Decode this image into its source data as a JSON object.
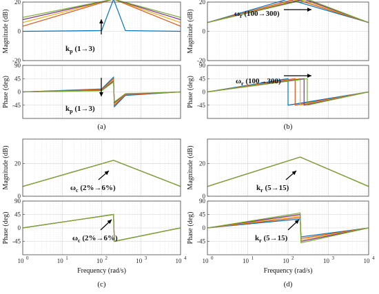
{
  "figure": {
    "xlabel": "Frequency (rad/s)",
    "x_ticks": [
      "10",
      "10",
      "10",
      "10",
      "10"
    ],
    "x_tick_exponents": [
      "0",
      "1",
      "2",
      "3",
      "4"
    ],
    "captions": [
      "(a)",
      "(b)",
      "(c)",
      "(d)"
    ],
    "series_colors": [
      "#0072BD",
      "#D95319",
      "#EDB120",
      "#7E2F8E",
      "#77AC30"
    ]
  },
  "chart_data": [
    {
      "type": "line",
      "panel": "a-magnitude",
      "ylabel": "Magnitude (dB)",
      "ylim": [
        -20,
        20
      ],
      "y_ticks": [
        "20",
        "0",
        "-20"
      ],
      "xscale": "log",
      "xlim": [
        1,
        10000
      ],
      "grid": true,
      "annotation": {
        "main": "k",
        "sub": "p",
        "rest": " (1→3)"
      },
      "series": [
        {
          "color": "#0072BD",
          "values": [
            {
              "x": 1,
              "y": 0
            },
            {
              "x": 100,
              "y": 0.5
            },
            {
              "x": 200,
              "y": 22
            },
            {
              "x": 400,
              "y": 0.5
            },
            {
              "x": 10000,
              "y": 0
            }
          ]
        },
        {
          "color": "#D95319",
          "values": [
            {
              "x": 1,
              "y": 3.5
            },
            {
              "x": 200,
              "y": 22
            },
            {
              "x": 10000,
              "y": 3.5
            }
          ]
        },
        {
          "color": "#EDB120",
          "values": [
            {
              "x": 1,
              "y": 6
            },
            {
              "x": 200,
              "y": 22
            },
            {
              "x": 10000,
              "y": 6
            }
          ]
        },
        {
          "color": "#7E2F8E",
          "values": [
            {
              "x": 1,
              "y": 8
            },
            {
              "x": 200,
              "y": 22
            },
            {
              "x": 10000,
              "y": 8
            }
          ]
        },
        {
          "color": "#77AC30",
          "values": [
            {
              "x": 1,
              "y": 9.5
            },
            {
              "x": 200,
              "y": 22
            },
            {
              "x": 10000,
              "y": 9.5
            }
          ]
        }
      ]
    },
    {
      "type": "line",
      "panel": "a-phase",
      "ylabel": "Phase (deg)",
      "ylim": [
        -90,
        90
      ],
      "y_ticks": [
        "90",
        "45",
        "0",
        "-45"
      ],
      "xscale": "log",
      "xlim": [
        1,
        10000
      ],
      "grid": true,
      "annotation": {
        "main": "k",
        "sub": "p",
        "rest": " (1→3)"
      },
      "series": [
        {
          "color": "#0072BD",
          "values": [
            {
              "x": 1,
              "y": 0
            },
            {
              "x": 100,
              "y": 10
            },
            {
              "x": 200,
              "y": 50
            },
            {
              "x": 210,
              "y": -50
            },
            {
              "x": 400,
              "y": -12
            },
            {
              "x": 10000,
              "y": 0
            }
          ]
        },
        {
          "color": "#D95319",
          "values": [
            {
              "x": 1,
              "y": 0
            },
            {
              "x": 100,
              "y": 8
            },
            {
              "x": 200,
              "y": 45
            },
            {
              "x": 210,
              "y": -45
            },
            {
              "x": 400,
              "y": -10
            },
            {
              "x": 10000,
              "y": 0
            }
          ]
        },
        {
          "color": "#EDB120",
          "values": [
            {
              "x": 1,
              "y": 0
            },
            {
              "x": 100,
              "y": 6
            },
            {
              "x": 200,
              "y": 40
            },
            {
              "x": 210,
              "y": -40
            },
            {
              "x": 400,
              "y": -8
            },
            {
              "x": 10000,
              "y": 0
            }
          ]
        },
        {
          "color": "#7E2F8E",
          "values": [
            {
              "x": 1,
              "y": 0
            },
            {
              "x": 100,
              "y": 5
            },
            {
              "x": 200,
              "y": 37
            },
            {
              "x": 210,
              "y": -37
            },
            {
              "x": 400,
              "y": -7
            },
            {
              "x": 10000,
              "y": 0
            }
          ]
        },
        {
          "color": "#77AC30",
          "values": [
            {
              "x": 1,
              "y": 0
            },
            {
              "x": 100,
              "y": 4
            },
            {
              "x": 200,
              "y": 34
            },
            {
              "x": 210,
              "y": -34
            },
            {
              "x": 400,
              "y": -6
            },
            {
              "x": 10000,
              "y": 0
            }
          ]
        }
      ]
    },
    {
      "type": "line",
      "panel": "b-magnitude",
      "ylabel": "Magnitude (dB)",
      "ylim": [
        -20,
        20
      ],
      "y_ticks": [
        "20",
        "0",
        "-20"
      ],
      "xscale": "log",
      "xlim": [
        1,
        10000
      ],
      "grid": true,
      "annotation": {
        "main": "ω",
        "sub": "r",
        "rest": " (100→300)"
      },
      "series": [
        {
          "color": "#0072BD",
          "values": [
            {
              "x": 1,
              "y": 6
            },
            {
              "x": 100,
              "y": 22
            },
            {
              "x": 10000,
              "y": 6
            }
          ]
        },
        {
          "color": "#D95319",
          "values": [
            {
              "x": 1,
              "y": 6
            },
            {
              "x": 150,
              "y": 22
            },
            {
              "x": 10000,
              "y": 6
            }
          ]
        },
        {
          "color": "#EDB120",
          "values": [
            {
              "x": 1,
              "y": 6
            },
            {
              "x": 200,
              "y": 22
            },
            {
              "x": 10000,
              "y": 6
            }
          ]
        },
        {
          "color": "#7E2F8E",
          "values": [
            {
              "x": 1,
              "y": 6
            },
            {
              "x": 250,
              "y": 22
            },
            {
              "x": 10000,
              "y": 6
            }
          ]
        },
        {
          "color": "#77AC30",
          "values": [
            {
              "x": 1,
              "y": 6
            },
            {
              "x": 300,
              "y": 22
            },
            {
              "x": 10000,
              "y": 6
            }
          ]
        }
      ]
    },
    {
      "type": "line",
      "panel": "b-phase",
      "ylabel": "Phase (deg)",
      "ylim": [
        -90,
        90
      ],
      "y_ticks": [
        "90",
        "45",
        "0",
        "-45"
      ],
      "xscale": "log",
      "xlim": [
        1,
        10000
      ],
      "grid": true,
      "annotation": {
        "main": "ω",
        "sub": "r",
        "rest": " (100→300)"
      },
      "series": [
        {
          "color": "#0072BD",
          "values": [
            {
              "x": 1,
              "y": 0
            },
            {
              "x": 100,
              "y": 45
            },
            {
              "x": 100,
              "y": -45
            },
            {
              "x": 10000,
              "y": 0
            }
          ]
        },
        {
          "color": "#D95319",
          "values": [
            {
              "x": 1,
              "y": 0
            },
            {
              "x": 150,
              "y": 45
            },
            {
              "x": 150,
              "y": -45
            },
            {
              "x": 10000,
              "y": 0
            }
          ]
        },
        {
          "color": "#EDB120",
          "values": [
            {
              "x": 1,
              "y": 0
            },
            {
              "x": 200,
              "y": 45
            },
            {
              "x": 200,
              "y": -45
            },
            {
              "x": 10000,
              "y": 0
            }
          ]
        },
        {
          "color": "#7E2F8E",
          "values": [
            {
              "x": 1,
              "y": 0
            },
            {
              "x": 250,
              "y": 45
            },
            {
              "x": 250,
              "y": -45
            },
            {
              "x": 10000,
              "y": 0
            }
          ]
        },
        {
          "color": "#77AC30",
          "values": [
            {
              "x": 1,
              "y": 0
            },
            {
              "x": 300,
              "y": 45
            },
            {
              "x": 300,
              "y": -45
            },
            {
              "x": 10000,
              "y": 0
            }
          ]
        }
      ]
    },
    {
      "type": "line",
      "panel": "c-magnitude",
      "ylabel": "Magnitude (dB)",
      "ylim": [
        0,
        35
      ],
      "y_ticks": [
        "20",
        "0"
      ],
      "xscale": "log",
      "xlim": [
        1,
        10000
      ],
      "grid": true,
      "annotation": {
        "main": "ω",
        "sub": "c",
        "rest": " (2%→6%)"
      },
      "series": [
        {
          "color": "#0072BD",
          "values": [
            {
              "x": 1,
              "y": 6
            },
            {
              "x": 200,
              "y": 22
            },
            {
              "x": 10000,
              "y": 6
            }
          ]
        },
        {
          "color": "#D95319",
          "values": [
            {
              "x": 1,
              "y": 6
            },
            {
              "x": 200,
              "y": 22
            },
            {
              "x": 10000,
              "y": 6
            }
          ]
        },
        {
          "color": "#EDB120",
          "values": [
            {
              "x": 1,
              "y": 6
            },
            {
              "x": 200,
              "y": 22
            },
            {
              "x": 10000,
              "y": 6
            }
          ]
        },
        {
          "color": "#7E2F8E",
          "values": [
            {
              "x": 1,
              "y": 6
            },
            {
              "x": 200,
              "y": 22
            },
            {
              "x": 10000,
              "y": 6
            }
          ]
        },
        {
          "color": "#77AC30",
          "values": [
            {
              "x": 1,
              "y": 6
            },
            {
              "x": 200,
              "y": 22
            },
            {
              "x": 10000,
              "y": 6
            }
          ]
        }
      ]
    },
    {
      "type": "line",
      "panel": "c-phase",
      "ylabel": "Phase (deg)",
      "ylim": [
        -90,
        90
      ],
      "y_ticks": [
        "90",
        "45",
        "0",
        "-45"
      ],
      "xscale": "log",
      "xlim": [
        1,
        10000
      ],
      "grid": true,
      "annotation": {
        "main": "ω",
        "sub": "c",
        "rest": " (2%→6%)"
      },
      "series": [
        {
          "color": "#0072BD",
          "values": [
            {
              "x": 1,
              "y": 0
            },
            {
              "x": 200,
              "y": 45
            },
            {
              "x": 210,
              "y": -45
            },
            {
              "x": 10000,
              "y": 0
            }
          ]
        },
        {
          "color": "#D95319",
          "values": [
            {
              "x": 1,
              "y": 0
            },
            {
              "x": 200,
              "y": 45
            },
            {
              "x": 210,
              "y": -45
            },
            {
              "x": 10000,
              "y": 0
            }
          ]
        },
        {
          "color": "#EDB120",
          "values": [
            {
              "x": 1,
              "y": 0
            },
            {
              "x": 200,
              "y": 45
            },
            {
              "x": 210,
              "y": -45
            },
            {
              "x": 10000,
              "y": 0
            }
          ]
        },
        {
          "color": "#7E2F8E",
          "values": [
            {
              "x": 1,
              "y": 0
            },
            {
              "x": 200,
              "y": 45
            },
            {
              "x": 210,
              "y": -45
            },
            {
              "x": 10000,
              "y": 0
            }
          ]
        },
        {
          "color": "#77AC30",
          "values": [
            {
              "x": 1,
              "y": 0
            },
            {
              "x": 200,
              "y": 45
            },
            {
              "x": 210,
              "y": -45
            },
            {
              "x": 10000,
              "y": 0
            }
          ]
        }
      ]
    },
    {
      "type": "line",
      "panel": "d-magnitude",
      "ylabel": "Magnitude (dB)",
      "ylim": [
        0,
        35
      ],
      "y_ticks": [
        "20",
        "0"
      ],
      "xscale": "log",
      "xlim": [
        1,
        10000
      ],
      "grid": true,
      "annotation": {
        "main": "k",
        "sub": "r",
        "rest": " (5→15)"
      },
      "series": [
        {
          "color": "#0072BD",
          "values": [
            {
              "x": 1,
              "y": 6
            },
            {
              "x": 200,
              "y": 24
            },
            {
              "x": 10000,
              "y": 6
            }
          ]
        },
        {
          "color": "#D95319",
          "values": [
            {
              "x": 1,
              "y": 6
            },
            {
              "x": 200,
              "y": 24
            },
            {
              "x": 10000,
              "y": 6
            }
          ]
        },
        {
          "color": "#EDB120",
          "values": [
            {
              "x": 1,
              "y": 6
            },
            {
              "x": 200,
              "y": 24
            },
            {
              "x": 10000,
              "y": 6
            }
          ]
        },
        {
          "color": "#7E2F8E",
          "values": [
            {
              "x": 1,
              "y": 6
            },
            {
              "x": 200,
              "y": 24
            },
            {
              "x": 10000,
              "y": 6
            }
          ]
        },
        {
          "color": "#77AC30",
          "values": [
            {
              "x": 1,
              "y": 6
            },
            {
              "x": 200,
              "y": 24
            },
            {
              "x": 10000,
              "y": 6
            }
          ]
        }
      ]
    },
    {
      "type": "line",
      "panel": "d-phase",
      "ylabel": "Phase (deg)",
      "ylim": [
        -90,
        90
      ],
      "y_ticks": [
        "90",
        "45",
        "0",
        "-45"
      ],
      "xscale": "log",
      "xlim": [
        1,
        10000
      ],
      "grid": true,
      "annotation": {
        "main": "k",
        "sub": "r",
        "rest": " (5→15)"
      },
      "series": [
        {
          "color": "#0072BD",
          "values": [
            {
              "x": 1,
              "y": 0
            },
            {
              "x": 200,
              "y": 30
            },
            {
              "x": 210,
              "y": -30
            },
            {
              "x": 10000,
              "y": 0
            }
          ]
        },
        {
          "color": "#D95319",
          "values": [
            {
              "x": 1,
              "y": 0
            },
            {
              "x": 200,
              "y": 35
            },
            {
              "x": 210,
              "y": -35
            },
            {
              "x": 10000,
              "y": 0
            }
          ]
        },
        {
          "color": "#EDB120",
          "values": [
            {
              "x": 1,
              "y": 0
            },
            {
              "x": 200,
              "y": 40
            },
            {
              "x": 210,
              "y": -40
            },
            {
              "x": 10000,
              "y": 0
            }
          ]
        },
        {
          "color": "#7E2F8E",
          "values": [
            {
              "x": 1,
              "y": 0
            },
            {
              "x": 200,
              "y": 45
            },
            {
              "x": 210,
              "y": -45
            },
            {
              "x": 10000,
              "y": 0
            }
          ]
        },
        {
          "color": "#77AC30",
          "values": [
            {
              "x": 1,
              "y": 0
            },
            {
              "x": 200,
              "y": 50
            },
            {
              "x": 210,
              "y": -50
            },
            {
              "x": 10000,
              "y": 0
            }
          ]
        }
      ]
    }
  ]
}
